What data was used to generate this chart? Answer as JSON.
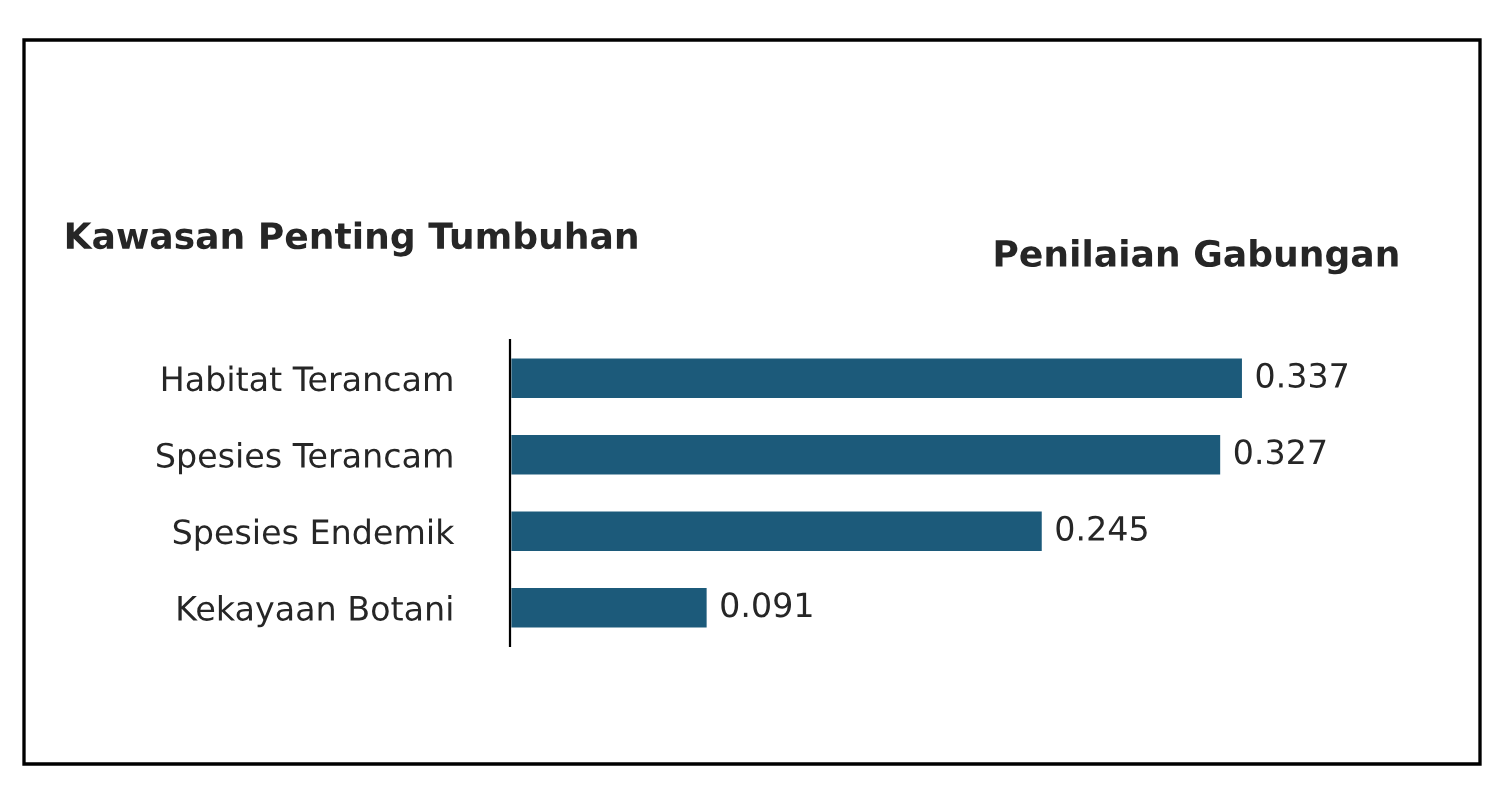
{
  "chart_data": {
    "type": "bar",
    "orientation": "horizontal",
    "ylabel": "Kawasan Penting Tumbuhan",
    "xlabel": "Penilaian Gabungan",
    "categories": [
      "Habitat Terancam",
      "Spesies Terancam",
      "Spesies Endemik",
      "Kekayaan Botani"
    ],
    "values": [
      0.337,
      0.327,
      0.245,
      0.091
    ],
    "color": "#1c5a7a",
    "data_labels": true,
    "grid": false,
    "legend": false
  }
}
